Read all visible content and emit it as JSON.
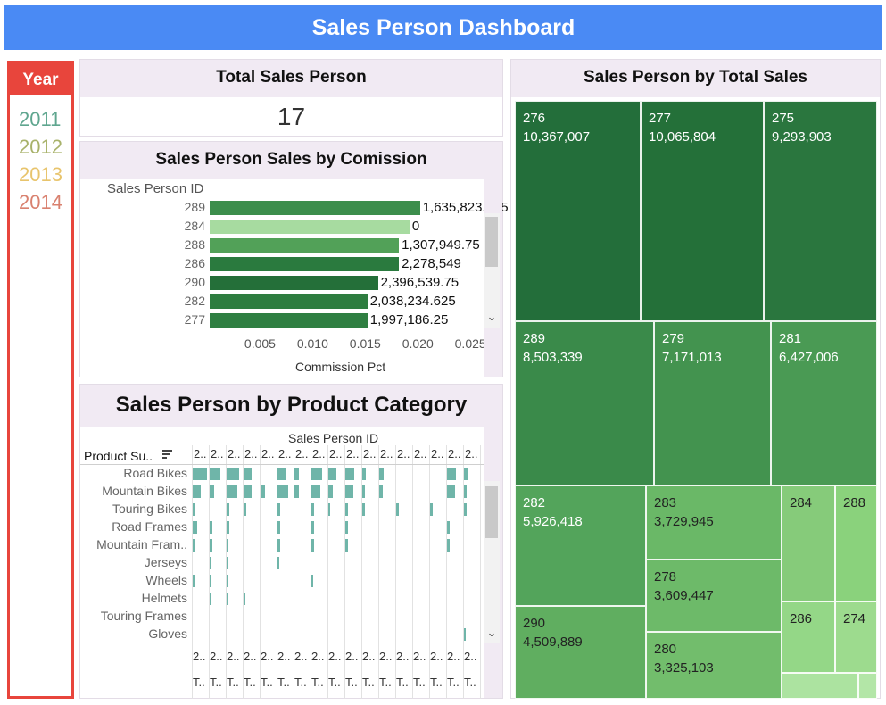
{
  "header": {
    "title": "Sales Person Dashboard"
  },
  "year_filter": {
    "title": "Year",
    "items": [
      {
        "label": "2011",
        "color": "#5fa68f"
      },
      {
        "label": "2012",
        "color": "#a8b26a"
      },
      {
        "label": "2013",
        "color": "#e8c46c"
      },
      {
        "label": "2014",
        "color": "#d9816f"
      }
    ]
  },
  "total_sales_person": {
    "title": "Total Sales Person",
    "value": "17"
  },
  "commission_chart": {
    "title": "Sales Person Sales by Comission",
    "row_header": "Sales Person ID",
    "xlabel": "Commission Pct",
    "ticks": [
      "0.005",
      "0.010",
      "0.015",
      "0.020",
      "0.025"
    ]
  },
  "chart_data": [
    {
      "type": "bar",
      "title": "Sales Person Sales by Comission",
      "xlabel": "Commission Pct",
      "ylabel": "Sales Person ID",
      "xlim": [
        0,
        0.028
      ],
      "categories": [
        "289",
        "284",
        "288",
        "286",
        "290",
        "282",
        "277"
      ],
      "values": [
        0.02,
        0.019,
        0.018,
        0.018,
        0.016,
        0.015,
        0.015
      ],
      "labels": [
        "1,635,823.375",
        "0",
        "1,307,949.75",
        "2,278,549",
        "2,396,539.75",
        "2,038,234.625",
        "1,997,186.25"
      ],
      "colors": [
        "#3c8e4c",
        "#a7dba0",
        "#52a158",
        "#2a7a3e",
        "#246f39",
        "#2e7d40",
        "#2f7f42"
      ]
    },
    {
      "type": "heatmap",
      "title": "Sales Person by Product Category",
      "ylabel": "Product Su..",
      "xlabel": "Sales Person ID",
      "rows": [
        "Road Bikes",
        "Mountain Bikes",
        "Touring Bikes",
        "Road Frames",
        "Mountain Fram..",
        "Jerseys",
        "Wheels",
        "Helmets",
        "Touring Frames",
        "Gloves"
      ],
      "columns": [
        "2..",
        "2..",
        "2..",
        "2..",
        "2..",
        "2..",
        "2..",
        "2..",
        "2..",
        "2..",
        "2..",
        "2..",
        "2..",
        "2..",
        "2..",
        "2..",
        "2.."
      ],
      "values": [
        [
          0.95,
          0.7,
          0.8,
          0.5,
          0,
          0.6,
          0.3,
          0.7,
          0.5,
          0.6,
          0.25,
          0.3,
          0,
          0,
          0,
          0.6,
          0.25
        ],
        [
          0.5,
          0.3,
          0.7,
          0.5,
          0.3,
          0.7,
          0.3,
          0.6,
          0.3,
          0.5,
          0.2,
          0.25,
          0,
          0,
          0,
          0.5,
          0.2
        ],
        [
          0.15,
          0,
          0.2,
          0.2,
          0,
          0.15,
          0,
          0.15,
          0.1,
          0.15,
          0.15,
          0,
          0.15,
          0,
          0.15,
          0,
          0.15
        ],
        [
          0.3,
          0.2,
          0.2,
          0,
          0,
          0.15,
          0,
          0.15,
          0,
          0.2,
          0,
          0,
          0,
          0,
          0,
          0.15,
          0
        ],
        [
          0.2,
          0.2,
          0.1,
          0,
          0,
          0.2,
          0,
          0.15,
          0,
          0.15,
          0,
          0,
          0,
          0,
          0,
          0.15,
          0
        ],
        [
          0,
          0.1,
          0.1,
          0,
          0,
          0.1,
          0,
          0,
          0,
          0,
          0,
          0,
          0,
          0,
          0,
          0,
          0
        ],
        [
          0.1,
          0.1,
          0.1,
          0,
          0,
          0,
          0,
          0.1,
          0,
          0,
          0,
          0,
          0,
          0,
          0,
          0,
          0
        ],
        [
          0,
          0.1,
          0.1,
          0.1,
          0,
          0,
          0,
          0,
          0,
          0,
          0,
          0,
          0,
          0,
          0,
          0,
          0
        ],
        [
          0,
          0,
          0,
          0,
          0,
          0,
          0,
          0,
          0,
          0,
          0,
          0,
          0,
          0,
          0,
          0,
          0
        ],
        [
          0,
          0,
          0,
          0,
          0,
          0,
          0,
          0,
          0,
          0,
          0,
          0,
          0,
          0,
          0,
          0,
          0.1
        ]
      ]
    },
    {
      "type": "treemap",
      "title": "Sales Person by Total Sales",
      "items": [
        {
          "id": "276",
          "value": 10367007,
          "label": "10,367,007",
          "color": "#236e3a"
        },
        {
          "id": "277",
          "value": 10065804,
          "label": "10,065,804",
          "color": "#247039"
        },
        {
          "id": "275",
          "value": 9293903,
          "label": "9,293,903",
          "color": "#2a763e"
        },
        {
          "id": "289",
          "value": 8503339,
          "label": "8,503,339",
          "color": "#3a8a4a"
        },
        {
          "id": "279",
          "value": 7171013,
          "label": "7,171,013",
          "color": "#43934f"
        },
        {
          "id": "281",
          "value": 6427006,
          "label": "6,427,006",
          "color": "#4a9a54"
        },
        {
          "id": "282",
          "value": 5926418,
          "label": "5,926,418",
          "color": "#53a45b"
        },
        {
          "id": "290",
          "value": 4509889,
          "label": "4,509,889",
          "color": "#60ae60"
        },
        {
          "id": "283",
          "value": 3729945,
          "label": "3,729,945",
          "color": "#6ab867"
        },
        {
          "id": "278",
          "value": 3609447,
          "label": "3,609,447",
          "color": "#6dba69"
        },
        {
          "id": "280",
          "value": 3325103,
          "label": "3,325,103",
          "color": "#72bd6c"
        },
        {
          "id": "284",
          "value": 1800000,
          "label": "",
          "color": "#86cb7a"
        },
        {
          "id": "288",
          "value": 1600000,
          "label": "",
          "color": "#8ad27c"
        },
        {
          "id": "286",
          "value": 1300000,
          "label": "",
          "color": "#94d787"
        },
        {
          "id": "274",
          "value": 1000000,
          "label": "",
          "color": "#9ddb8e"
        },
        {
          "id": "",
          "value": 500000,
          "label": "",
          "color": "#ace3a0"
        },
        {
          "id": "",
          "value": 100000,
          "label": "",
          "color": "#b3e6a7"
        }
      ]
    }
  ],
  "product_chart": {
    "title": "Sales Person by Product Category",
    "col_header": "Sales Person ID",
    "row_header": "Product Su..",
    "footer_row1": "2..",
    "footer_row2": "T.."
  },
  "treemap": {
    "title": "Sales Person by Total Sales"
  }
}
